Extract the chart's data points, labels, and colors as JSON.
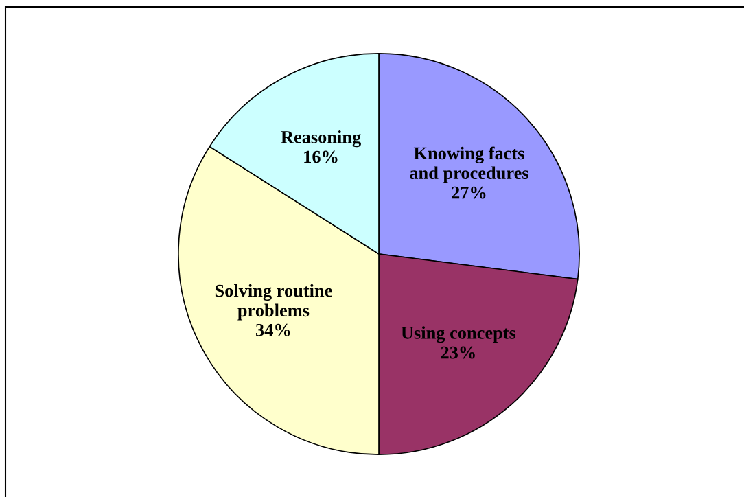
{
  "chart_data": {
    "type": "pie",
    "categories": [
      "Knowing facts\nand procedures",
      "Using concepts",
      "Solving routine\nproblems",
      "Reasoning"
    ],
    "values": [
      27,
      23,
      34,
      16
    ],
    "colors": [
      "#9999ff",
      "#993366",
      "#ffffcc",
      "#ccffff"
    ],
    "value_labels": [
      "27%",
      "23%",
      "34%",
      "16%"
    ]
  }
}
